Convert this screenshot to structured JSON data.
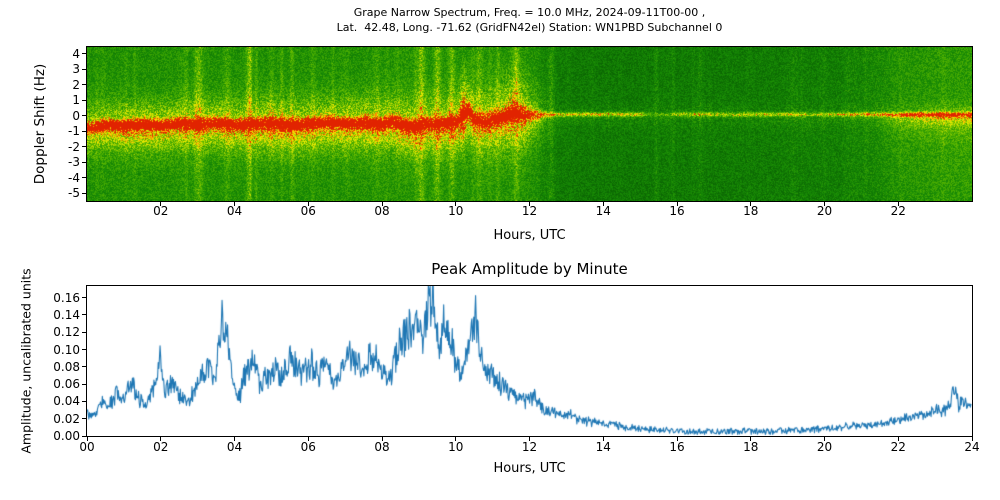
{
  "figure": {
    "title_line1": "Grape Narrow Spectrum, Freq. = 10.0 MHz, 2024-09-11T00-00 ,",
    "title_line2": "Lat.  42.48, Long. -71.62 (GridFN42el) Station: WN1PBD Subchannel 0",
    "text_color": "#000000",
    "background": "#ffffff"
  },
  "chart_data": [
    {
      "type": "heatmap",
      "name": "doppler-spectrogram",
      "title": "Grape Narrow Spectrum, Freq. = 10.0 MHz, 2024-09-11T00-00 , Lat. 42.48, Long. -71.62 (GridFN42el) Station: WN1PBD Subchannel 0",
      "xlabel": "Hours, UTC",
      "ylabel": "Doppler Shift (Hz)",
      "xlim": [
        0,
        24
      ],
      "ylim": [
        -5.5,
        4.45
      ],
      "x_ticks": [
        {
          "value": 2,
          "label": "02"
        },
        {
          "value": 4,
          "label": "04"
        },
        {
          "value": 6,
          "label": "06"
        },
        {
          "value": 8,
          "label": "08"
        },
        {
          "value": 10,
          "label": "10"
        },
        {
          "value": 12,
          "label": "12"
        },
        {
          "value": 14,
          "label": "14"
        },
        {
          "value": 16,
          "label": "16"
        },
        {
          "value": 18,
          "label": "18"
        },
        {
          "value": 20,
          "label": "20"
        },
        {
          "value": 22,
          "label": "22"
        }
      ],
      "y_ticks": [
        {
          "value": 4,
          "label": "4"
        },
        {
          "value": 3,
          "label": "3"
        },
        {
          "value": 2,
          "label": "2"
        },
        {
          "value": 1,
          "label": "1"
        },
        {
          "value": 0,
          "label": "0"
        },
        {
          "value": -1,
          "label": "-1"
        },
        {
          "value": -2,
          "label": "-2"
        },
        {
          "value": -3,
          "label": "-3"
        },
        {
          "value": -4,
          "label": "-4"
        },
        {
          "value": -5,
          "label": "-5"
        }
      ],
      "colormap_stops": [
        [
          0.0,
          [
            8,
            95,
            2
          ]
        ],
        [
          0.28,
          [
            24,
            140,
            5
          ]
        ],
        [
          0.5,
          [
            85,
            180,
            0
          ]
        ],
        [
          0.68,
          [
            175,
            215,
            0
          ]
        ],
        [
          0.8,
          [
            250,
            240,
            0
          ]
        ],
        [
          0.9,
          [
            255,
            150,
            0
          ]
        ],
        [
          1.0,
          [
            225,
            35,
            0
          ]
        ]
      ],
      "seed": 1337,
      "noise_amp": 0.27,
      "bg_level": [
        [
          0,
          0.3
        ],
        [
          9,
          0.3
        ],
        [
          11,
          0.31
        ],
        [
          12.2,
          0.29
        ],
        [
          12.6,
          0.17
        ],
        [
          14,
          0.15
        ],
        [
          18,
          0.17
        ],
        [
          20.5,
          0.19
        ],
        [
          21.3,
          0.24
        ],
        [
          22,
          0.31
        ],
        [
          23,
          0.34
        ],
        [
          24,
          0.36
        ]
      ],
      "trace_center": [
        [
          0,
          -0.75
        ],
        [
          0.5,
          -0.55
        ],
        [
          1,
          -0.62
        ],
        [
          1.5,
          -0.5
        ],
        [
          2,
          -0.6
        ],
        [
          2.5,
          -0.48
        ],
        [
          3,
          -0.55
        ],
        [
          3.5,
          -0.42
        ],
        [
          4,
          -0.58
        ],
        [
          4.5,
          -0.5
        ],
        [
          5,
          -0.42
        ],
        [
          5.5,
          -0.55
        ],
        [
          6,
          -0.48
        ],
        [
          6.5,
          -0.38
        ],
        [
          7,
          -0.5
        ],
        [
          7.5,
          -0.42
        ],
        [
          8,
          -0.5
        ],
        [
          8.3,
          -0.32
        ],
        [
          8.6,
          -0.55
        ],
        [
          8.9,
          -0.72
        ],
        [
          9.2,
          -0.42
        ],
        [
          9.5,
          -0.52
        ],
        [
          9.8,
          -0.38
        ],
        [
          10,
          -0.42
        ],
        [
          10.2,
          0.25
        ],
        [
          10.35,
          0.45
        ],
        [
          10.5,
          -0.15
        ],
        [
          10.8,
          -0.32
        ],
        [
          11,
          -0.18
        ],
        [
          11.3,
          0
        ],
        [
          11.6,
          0.3
        ],
        [
          11.9,
          0.12
        ],
        [
          12.3,
          0.1
        ],
        [
          24,
          0.1
        ]
      ],
      "trace_intensity": [
        [
          0,
          0.8
        ],
        [
          0.5,
          0.88
        ],
        [
          8,
          0.9
        ],
        [
          10,
          0.85
        ],
        [
          10.5,
          0.8
        ],
        [
          11.2,
          0.7
        ],
        [
          11.8,
          0.62
        ],
        [
          12.3,
          0.58
        ],
        [
          12.6,
          0.52
        ],
        [
          15,
          0.5
        ],
        [
          15.25,
          0.15
        ],
        [
          15.7,
          0.18
        ],
        [
          16.1,
          0.45
        ],
        [
          17.5,
          0.42
        ],
        [
          18.5,
          0.48
        ],
        [
          19.3,
          0.4
        ],
        [
          19.6,
          0.3
        ],
        [
          20.1,
          0.45
        ],
        [
          21,
          0.5
        ],
        [
          22,
          0.52
        ],
        [
          22.6,
          0.72
        ],
        [
          23.2,
          0.68
        ],
        [
          23.6,
          0.55
        ],
        [
          24,
          0.6
        ]
      ],
      "trace_width": [
        [
          0,
          0.22
        ],
        [
          10,
          0.24
        ],
        [
          11,
          0.32
        ],
        [
          12,
          0.28
        ],
        [
          12.5,
          0.1
        ],
        [
          24,
          0.1
        ]
      ],
      "glow_intensity": [
        [
          0,
          0.3
        ],
        [
          2,
          0.33
        ],
        [
          9,
          0.33
        ],
        [
          10.8,
          0.3
        ],
        [
          11.6,
          0.28
        ],
        [
          12.3,
          0.15
        ],
        [
          12.7,
          0.06
        ],
        [
          21,
          0.05
        ],
        [
          22,
          0.1
        ],
        [
          23,
          0.14
        ],
        [
          24,
          0.16
        ]
      ],
      "glow_width": [
        [
          0,
          1.1
        ],
        [
          9,
          1.25
        ],
        [
          10.5,
          1.4
        ],
        [
          11.6,
          1.7
        ],
        [
          12.2,
          1.3
        ],
        [
          12.7,
          0.45
        ],
        [
          24,
          0.5
        ]
      ],
      "curtain_strength": [
        [
          0,
          0.22
        ],
        [
          1,
          0.34
        ],
        [
          1.6,
          0.42
        ],
        [
          2.2,
          0.26
        ],
        [
          3,
          0.22
        ],
        [
          4,
          0.28
        ],
        [
          4.8,
          0.38
        ],
        [
          5.5,
          0.42
        ],
        [
          6.2,
          0.34
        ],
        [
          7,
          0.26
        ],
        [
          8,
          0.3
        ],
        [
          8.8,
          0.42
        ],
        [
          9.5,
          0.38
        ],
        [
          10.3,
          0.42
        ],
        [
          11,
          0.38
        ],
        [
          11.8,
          0.34
        ],
        [
          12.4,
          0.12
        ],
        [
          13,
          0.05
        ],
        [
          19.2,
          0.05
        ],
        [
          19.5,
          0.12
        ],
        [
          19.8,
          0.05
        ],
        [
          21.3,
          0.08
        ],
        [
          22,
          0.25
        ],
        [
          22.8,
          0.34
        ],
        [
          23.5,
          0.36
        ],
        [
          24,
          0.36
        ]
      ],
      "curtain_decay": 1.15,
      "spires": [
        [
          10.2,
          0.07,
          0.5
        ],
        [
          11.5,
          0.12,
          0.28
        ],
        [
          11.85,
          0.1,
          0.26
        ],
        [
          4.95,
          0.05,
          0.15
        ],
        [
          7.6,
          0.05,
          0.13
        ],
        [
          2.95,
          0.04,
          0.1
        ],
        [
          14.15,
          0.02,
          0.12
        ],
        [
          16.9,
          0.02,
          0.1
        ],
        [
          19,
          0.02,
          0.08
        ]
      ],
      "spire_decay": 1.6,
      "streaks": {
        "count": 70,
        "back_half_scale": 0.4
      }
    },
    {
      "type": "line",
      "name": "peak-amplitude",
      "title": "Peak Amplitude by Minute",
      "xlabel": "Hours, UTC",
      "ylabel": "Amplitude, uncalibrated units",
      "xlim": [
        0,
        24
      ],
      "ylim": [
        0,
        0.1735
      ],
      "color": "#1f77b4",
      "line_width": 1.1,
      "x_ticks": [
        {
          "value": 0,
          "label": "00"
        },
        {
          "value": 2,
          "label": "02"
        },
        {
          "value": 4,
          "label": "04"
        },
        {
          "value": 6,
          "label": "06"
        },
        {
          "value": 8,
          "label": "08"
        },
        {
          "value": 10,
          "label": "10"
        },
        {
          "value": 12,
          "label": "12"
        },
        {
          "value": 14,
          "label": "14"
        },
        {
          "value": 16,
          "label": "16"
        },
        {
          "value": 18,
          "label": "18"
        },
        {
          "value": 20,
          "label": "20"
        },
        {
          "value": 22,
          "label": "22"
        },
        {
          "value": 24,
          "label": "24"
        }
      ],
      "y_ticks": [
        {
          "value": 0.0,
          "label": "0.00"
        },
        {
          "value": 0.02,
          "label": "0.02"
        },
        {
          "value": 0.04,
          "label": "0.04"
        },
        {
          "value": 0.06,
          "label": "0.06"
        },
        {
          "value": 0.08,
          "label": "0.08"
        },
        {
          "value": 0.1,
          "label": "0.10"
        },
        {
          "value": 0.12,
          "label": "0.12"
        },
        {
          "value": 0.14,
          "label": "0.14"
        },
        {
          "value": 0.16,
          "label": "0.16"
        }
      ],
      "points_t": [
        0,
        0.2,
        0.4,
        0.6,
        0.8,
        1.0,
        1.2,
        1.4,
        1.6,
        1.8,
        2.0,
        2.1,
        2.3,
        2.5,
        2.7,
        2.9,
        3.1,
        3.3,
        3.5,
        3.65,
        3.8,
        3.95,
        4.1,
        4.3,
        4.5,
        4.7,
        4.9,
        5.1,
        5.3,
        5.5,
        5.7,
        5.9,
        6.1,
        6.3,
        6.5,
        6.7,
        6.9,
        7.1,
        7.3,
        7.5,
        7.7,
        7.9,
        8.1,
        8.3,
        8.5,
        8.7,
        8.9,
        9.1,
        9.25,
        9.4,
        9.55,
        9.7,
        9.85,
        10.0,
        10.2,
        10.4,
        10.55,
        10.7,
        10.9,
        11.1,
        11.3,
        11.5,
        11.7,
        11.9,
        12.1,
        12.3,
        12.5,
        12.7,
        12.9,
        13.1,
        13.3,
        13.5,
        13.7,
        13.9,
        14.1,
        14.3,
        14.5,
        14.7,
        15.0,
        15.5,
        16.0,
        16.5,
        17.0,
        17.5,
        18.0,
        18.5,
        19.0,
        19.5,
        20.0,
        20.5,
        21.0,
        21.5,
        22.0,
        22.2,
        22.4,
        22.6,
        22.8,
        23.0,
        23.2,
        23.4,
        23.55,
        23.65,
        23.8,
        24
      ],
      "points_amp": [
        0.028,
        0.022,
        0.038,
        0.032,
        0.05,
        0.04,
        0.058,
        0.045,
        0.033,
        0.052,
        0.098,
        0.05,
        0.06,
        0.048,
        0.036,
        0.05,
        0.065,
        0.08,
        0.07,
        0.135,
        0.128,
        0.058,
        0.04,
        0.072,
        0.09,
        0.058,
        0.068,
        0.08,
        0.062,
        0.088,
        0.078,
        0.072,
        0.085,
        0.068,
        0.092,
        0.058,
        0.078,
        0.098,
        0.088,
        0.068,
        0.093,
        0.083,
        0.068,
        0.073,
        0.108,
        0.118,
        0.132,
        0.118,
        0.145,
        0.17,
        0.108,
        0.128,
        0.118,
        0.083,
        0.068,
        0.118,
        0.138,
        0.09,
        0.073,
        0.064,
        0.058,
        0.049,
        0.044,
        0.04,
        0.046,
        0.034,
        0.027,
        0.029,
        0.021,
        0.024,
        0.019,
        0.017,
        0.0145,
        0.0155,
        0.0115,
        0.0125,
        0.0095,
        0.008,
        0.0085,
        0.006,
        0.005,
        0.004,
        0.005,
        0.004,
        0.0045,
        0.004,
        0.005,
        0.0055,
        0.007,
        0.009,
        0.011,
        0.013,
        0.017,
        0.021,
        0.019,
        0.025,
        0.023,
        0.029,
        0.027,
        0.033,
        0.058,
        0.038,
        0.036,
        0.031
      ],
      "seed": 99,
      "jitter_rel": 0.2,
      "jitter_abs": 0.0035
    }
  ]
}
